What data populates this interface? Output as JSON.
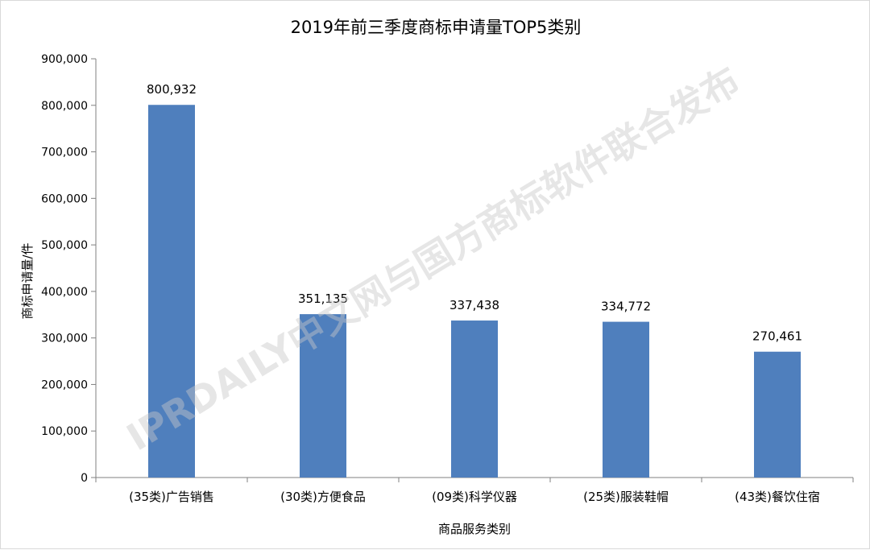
{
  "chart_data": {
    "type": "bar",
    "title": "2019年前三季度商标申请量TOP5类别",
    "xlabel": "商品服务类别",
    "ylabel": "商标申请量/件",
    "categories": [
      "(35类)广告销售",
      "(30类)方便食品",
      "(09类)科学仪器",
      "(25类)服装鞋帽",
      "(43类)餐饮住宿"
    ],
    "values": [
      800932,
      351135,
      337438,
      334772,
      270461
    ],
    "data_labels": [
      "800,932",
      "351,135",
      "337,438",
      "334,772",
      "270,461"
    ],
    "ylim": [
      0,
      900000
    ],
    "yticks": [
      0,
      100000,
      200000,
      300000,
      400000,
      500000,
      600000,
      700000,
      800000,
      900000
    ],
    "ytick_labels": [
      "0",
      "100,000",
      "200,000",
      "300,000",
      "400,000",
      "500,000",
      "600,000",
      "700,000",
      "800,000",
      "900,000"
    ],
    "bar_color": "#4f7fbd",
    "axis_color": "#808080",
    "grid": false,
    "legend": "none"
  },
  "watermark": "IPRDAILY中文网与国方商标软件联合发布"
}
